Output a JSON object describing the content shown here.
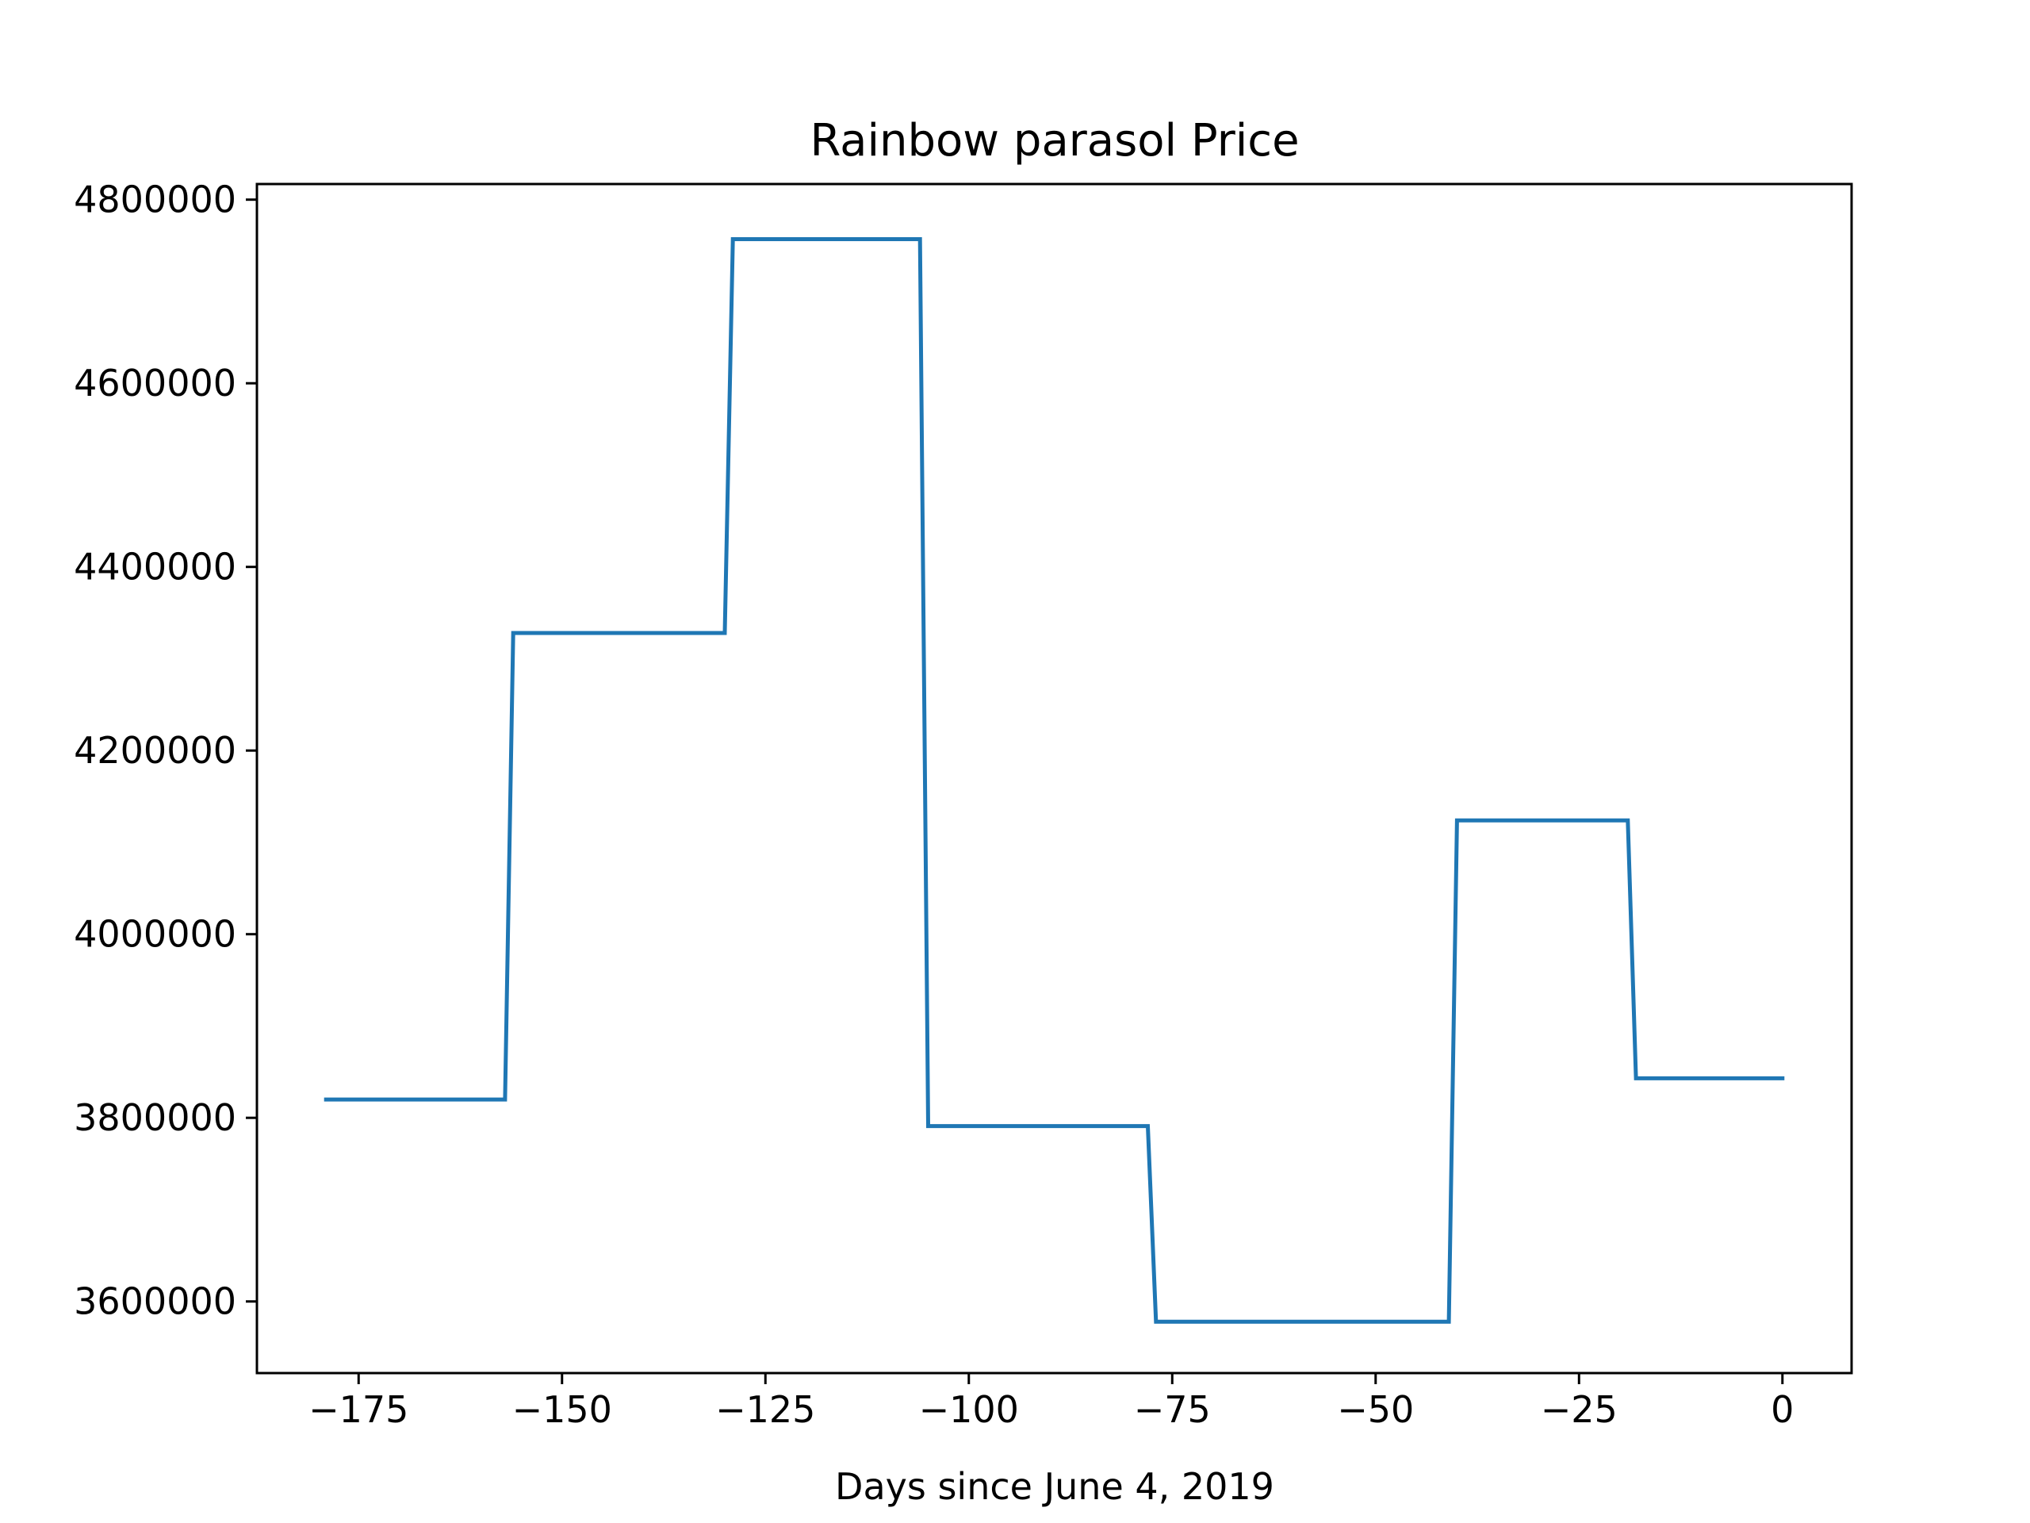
{
  "chart_data": {
    "type": "line",
    "title": "Rainbow parasol Price",
    "xlabel": "Days since June 4, 2019",
    "ylabel": "",
    "xlim": [
      -187.5,
      8.5
    ],
    "ylim": [
      3522000,
      4817000
    ],
    "xticks": [
      -175,
      -150,
      -125,
      -100,
      -75,
      -50,
      -25,
      0
    ],
    "xtick_labels": [
      "−175",
      "−150",
      "−125",
      "−100",
      "−75",
      "−50",
      "−25",
      "0"
    ],
    "yticks": [
      3600000,
      3800000,
      4000000,
      4200000,
      4400000,
      4600000,
      4800000
    ],
    "ytick_labels": [
      "3600000",
      "3800000",
      "4000000",
      "4200000",
      "4400000",
      "4600000",
      "4800000"
    ],
    "grid": false,
    "series": [
      {
        "color": "#1f77b4",
        "x": [
          -179,
          -157,
          -156,
          -130,
          -129,
          -106,
          -105,
          -78,
          -77,
          -41,
          -40,
          -19,
          -18,
          0
        ],
        "y": [
          3820000,
          3820000,
          4328000,
          4328000,
          4757000,
          4757000,
          3791000,
          3791000,
          3578000,
          3578000,
          4124000,
          4124000,
          3843000,
          3843000
        ]
      }
    ]
  }
}
